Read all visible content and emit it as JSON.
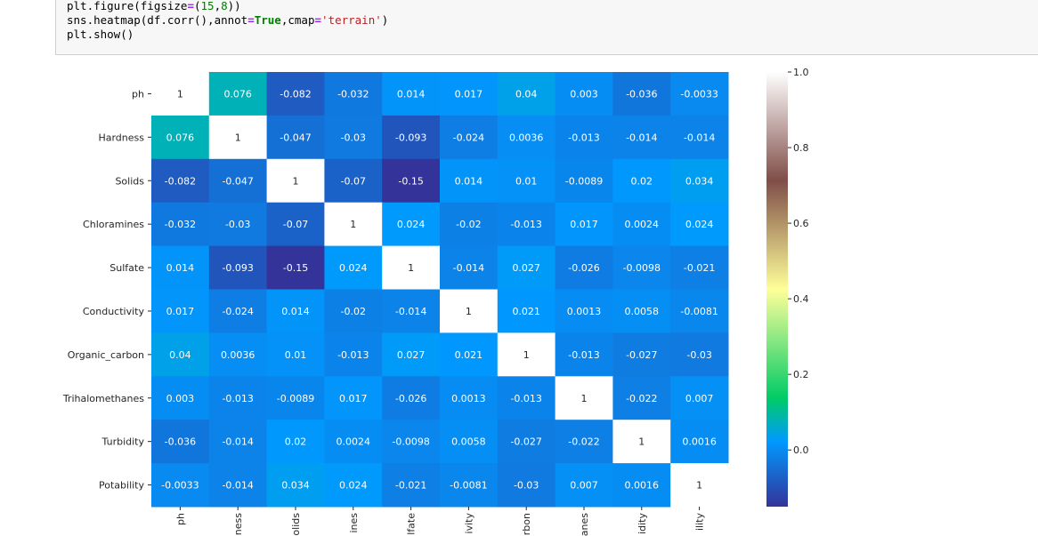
{
  "cell": {
    "prompt": "",
    "code": [
      "plt.figure(figsize=(15,8))",
      "sns.heatmap(df.corr(),annot=True,cmap='terrain')",
      "plt.show()"
    ]
  },
  "chart_data": {
    "type": "heatmap",
    "title": "",
    "xlabel": "",
    "ylabel": "",
    "colormap": "terrain",
    "rows": [
      "ph",
      "Hardness",
      "Solids",
      "Chloramines",
      "Sulfate",
      "Conductivity",
      "Organic_carbon",
      "Trihalomethanes",
      "Turbidity",
      "Potability"
    ],
    "columns_visible_text": [
      "ph",
      "ness",
      "olids",
      "ines",
      "lfate",
      "ivity",
      "rbon",
      "anes",
      "idity",
      "ility"
    ],
    "values": [
      [
        1,
        0.076,
        -0.082,
        -0.032,
        0.014,
        0.017,
        0.04,
        0.003,
        -0.036,
        -0.0033
      ],
      [
        0.076,
        1,
        -0.047,
        -0.03,
        -0.093,
        -0.024,
        0.0036,
        -0.013,
        -0.014,
        -0.014
      ],
      [
        -0.082,
        -0.047,
        1,
        -0.07,
        -0.15,
        0.014,
        0.01,
        -0.0089,
        0.02,
        0.034
      ],
      [
        -0.032,
        -0.03,
        -0.07,
        1,
        0.024,
        -0.02,
        -0.013,
        0.017,
        0.0024,
        0.024
      ],
      [
        0.014,
        -0.093,
        -0.15,
        0.024,
        1,
        -0.014,
        0.027,
        -0.026,
        -0.0098,
        -0.021
      ],
      [
        0.017,
        -0.024,
        0.014,
        -0.02,
        -0.014,
        1,
        0.021,
        0.0013,
        0.0058,
        -0.0081
      ],
      [
        0.04,
        0.0036,
        0.01,
        -0.013,
        0.027,
        0.021,
        1,
        -0.013,
        -0.027,
        -0.03
      ],
      [
        0.003,
        -0.013,
        -0.0089,
        0.017,
        -0.026,
        0.0013,
        -0.013,
        1,
        -0.022,
        0.007
      ],
      [
        -0.036,
        -0.014,
        0.02,
        0.0024,
        -0.0098,
        0.0058,
        -0.027,
        -0.022,
        1,
        0.0016
      ],
      [
        -0.0033,
        -0.014,
        0.034,
        0.024,
        -0.021,
        -0.0081,
        -0.03,
        0.007,
        0.0016,
        1
      ]
    ],
    "annotations": [
      [
        "1",
        "0.076",
        "-0.082",
        "-0.032",
        "0.014",
        "0.017",
        "0.04",
        "0.003",
        "-0.036",
        "-0.0033"
      ],
      [
        "0.076",
        "1",
        "-0.047",
        "-0.03",
        "-0.093",
        "-0.024",
        "0.0036",
        "-0.013",
        "-0.014",
        "-0.014"
      ],
      [
        "-0.082",
        "-0.047",
        "1",
        "-0.07",
        "-0.15",
        "0.014",
        "0.01",
        "-0.0089",
        "0.02",
        "0.034"
      ],
      [
        "-0.032",
        "-0.03",
        "-0.07",
        "1",
        "0.024",
        "-0.02",
        "-0.013",
        "0.017",
        "0.0024",
        "0.024"
      ],
      [
        "0.014",
        "-0.093",
        "-0.15",
        "0.024",
        "1",
        "-0.014",
        "0.027",
        "-0.026",
        "-0.0098",
        "-0.021"
      ],
      [
        "0.017",
        "-0.024",
        "0.014",
        "-0.02",
        "-0.014",
        "1",
        "0.021",
        "0.0013",
        "0.0058",
        "-0.0081"
      ],
      [
        "0.04",
        "0.0036",
        "0.01",
        "-0.013",
        "0.027",
        "0.021",
        "1",
        "-0.013",
        "-0.027",
        "-0.03"
      ],
      [
        "0.003",
        "-0.013",
        "-0.0089",
        "0.017",
        "-0.026",
        "0.0013",
        "-0.013",
        "1",
        "-0.022",
        "0.007"
      ],
      [
        "-0.036",
        "-0.014",
        "0.02",
        "0.0024",
        "-0.0098",
        "0.0058",
        "-0.027",
        "-0.022",
        "1",
        "0.0016"
      ],
      [
        "-0.0033",
        "-0.014",
        "0.034",
        "0.024",
        "-0.021",
        "-0.0081",
        "-0.03",
        "0.007",
        "0.0016",
        "1"
      ]
    ],
    "vmin": -0.15,
    "vmax": 1.0,
    "colorbar_ticks": [
      0.0,
      0.2,
      0.4,
      0.6,
      0.8,
      1.0
    ],
    "colorbar_tick_labels": [
      "0.0",
      "0.2",
      "0.4",
      "0.6",
      "0.8",
      "1.0"
    ],
    "colormap_stops": [
      {
        "t": 0.0,
        "color": "#333399"
      },
      {
        "t": 0.15,
        "color": "#0099ff"
      },
      {
        "t": 0.25,
        "color": "#00cc66"
      },
      {
        "t": 0.5,
        "color": "#ffff99"
      },
      {
        "t": 0.75,
        "color": "#804d48"
      },
      {
        "t": 1.0,
        "color": "#ffffff"
      }
    ]
  }
}
